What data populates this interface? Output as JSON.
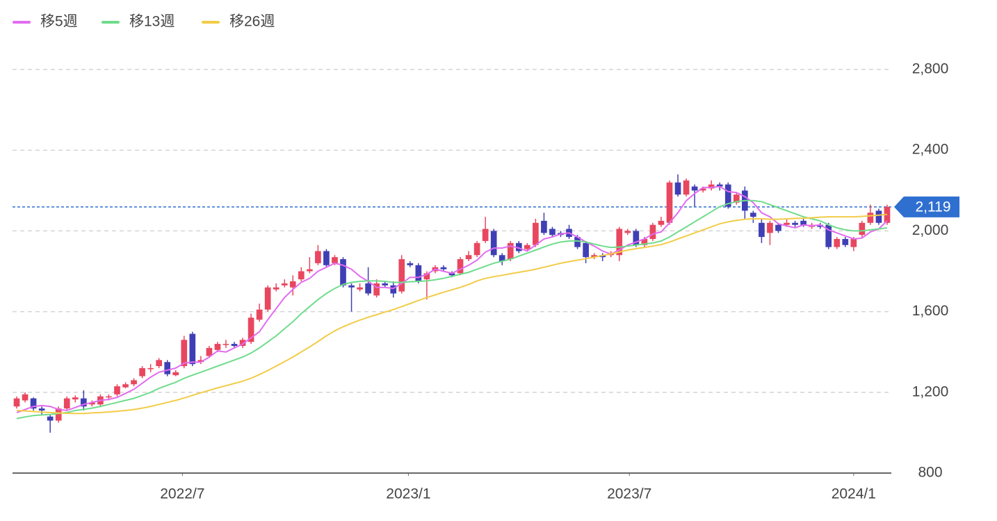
{
  "chart_data": {
    "type": "candlestick",
    "series": [
      {
        "name": "移5週",
        "color": "#e26cf0",
        "values": [
          1100,
          1115,
          1130,
          1135,
          1130,
          1115,
          1110,
          1125,
          1140,
          1150,
          1160,
          1165,
          1175,
          1195,
          1215,
          1245,
          1275,
          1300,
          1310,
          1320,
          1345,
          1350,
          1350,
          1375,
          1405,
          1400,
          1420,
          1440,
          1470,
          1500,
          1560,
          1615,
          1670,
          1710,
          1745,
          1765,
          1800,
          1820,
          1840,
          1830,
          1810,
          1775,
          1750,
          1720,
          1720,
          1715,
          1740,
          1770,
          1770,
          1785,
          1810,
          1800,
          1790,
          1810,
          1830,
          1855,
          1895,
          1915,
          1915,
          1925,
          1915,
          1900,
          1930,
          1960,
          1970,
          1985,
          1990,
          1970,
          1945,
          1925,
          1900,
          1885,
          1905,
          1930,
          1945,
          1960,
          1985,
          1995,
          2040,
          2090,
          2150,
          2185,
          2215,
          2215,
          2220,
          2195,
          2190,
          2170,
          2140,
          2090,
          2070,
          2035,
          2025,
          2015,
          2030,
          2025,
          2030,
          2005,
          1990,
          1975,
          1960,
          1965,
          1995,
          2010,
          2050
        ]
      },
      {
        "name": "移13週",
        "color": "#6fdc8c",
        "values": [
          1070,
          1078,
          1085,
          1088,
          1090,
          1095,
          1100,
          1110,
          1115,
          1122,
          1130,
          1140,
          1150,
          1160,
          1170,
          1185,
          1200,
          1220,
          1235,
          1250,
          1270,
          1285,
          1300,
          1315,
          1330,
          1345,
          1360,
          1375,
          1395,
          1420,
          1450,
          1480,
          1515,
          1550,
          1590,
          1625,
          1660,
          1690,
          1715,
          1735,
          1745,
          1750,
          1752,
          1752,
          1750,
          1745,
          1745,
          1748,
          1750,
          1752,
          1758,
          1765,
          1775,
          1785,
          1795,
          1810,
          1825,
          1840,
          1850,
          1860,
          1875,
          1890,
          1905,
          1920,
          1935,
          1945,
          1950,
          1950,
          1945,
          1935,
          1925,
          1918,
          1920,
          1925,
          1930,
          1935,
          1940,
          1950,
          1970,
          1995,
          2020,
          2045,
          2070,
          2095,
          2120,
          2135,
          2145,
          2150,
          2150,
          2145,
          2130,
          2115,
          2100,
          2085,
          2070,
          2060,
          2050,
          2030,
          2015,
          2005,
          2000,
          2000,
          2005,
          2010,
          2015
        ]
      },
      {
        "name": "移26週",
        "color": "#f2cc48",
        "values": [
          1110,
          1108,
          1105,
          1102,
          1100,
          1098,
          1096,
          1095,
          1095,
          1098,
          1100,
          1103,
          1106,
          1110,
          1115,
          1122,
          1130,
          1140,
          1150,
          1160,
          1172,
          1185,
          1198,
          1210,
          1222,
          1233,
          1244,
          1255,
          1270,
          1288,
          1308,
          1330,
          1352,
          1375,
          1400,
          1425,
          1452,
          1480,
          1505,
          1525,
          1542,
          1558,
          1572,
          1585,
          1598,
          1610,
          1625,
          1640,
          1655,
          1670,
          1683,
          1696,
          1708,
          1720,
          1735,
          1752,
          1765,
          1773,
          1780,
          1788,
          1795,
          1802,
          1810,
          1820,
          1830,
          1840,
          1848,
          1855,
          1862,
          1870,
          1878,
          1886,
          1895,
          1905,
          1912,
          1918,
          1925,
          1932,
          1945,
          1960,
          1975,
          1990,
          2005,
          2020,
          2035,
          2045,
          2052,
          2058,
          2060,
          2060,
          2058,
          2058,
          2060,
          2062,
          2063,
          2065,
          2068,
          2070,
          2070,
          2070,
          2070,
          2072,
          2075,
          2078,
          2082
        ]
      }
    ],
    "candles": {
      "up_color": "#e8475f",
      "down_color": "#3f3fb5",
      "open": [
        1130,
        1160,
        1170,
        1120,
        1080,
        1060,
        1120,
        1165,
        1170,
        1140,
        1140,
        1175,
        1190,
        1225,
        1240,
        1280,
        1315,
        1330,
        1350,
        1285,
        1330,
        1490,
        1350,
        1380,
        1410,
        1435,
        1440,
        1430,
        1450,
        1560,
        1610,
        1710,
        1730,
        1720,
        1760,
        1800,
        1840,
        1900,
        1840,
        1860,
        1730,
        1710,
        1740,
        1680,
        1740,
        1730,
        1700,
        1840,
        1830,
        1760,
        1800,
        1820,
        1790,
        1790,
        1860,
        1880,
        1950,
        2000,
        1880,
        1860,
        1940,
        1910,
        1930,
        2050,
        2010,
        1990,
        2010,
        1970,
        1940,
        1870,
        1880,
        1880,
        1880,
        1990,
        2000,
        1930,
        1960,
        2030,
        2040,
        2240,
        2180,
        2220,
        2200,
        2210,
        2230,
        2230,
        2140,
        2200,
        2090,
        2040,
        1990,
        2030,
        2030,
        2040,
        2050,
        2020,
        2030,
        2030,
        1920,
        1960,
        1920,
        1980,
        2040,
        2100,
        2040
      ],
      "high": [
        1180,
        1200,
        1175,
        1130,
        1090,
        1130,
        1180,
        1185,
        1210,
        1160,
        1190,
        1190,
        1240,
        1250,
        1270,
        1330,
        1340,
        1370,
        1360,
        1310,
        1480,
        1500,
        1380,
        1430,
        1450,
        1460,
        1450,
        1470,
        1590,
        1640,
        1730,
        1740,
        1760,
        1780,
        1820,
        1870,
        1930,
        1910,
        1880,
        1870,
        1740,
        1740,
        1820,
        1760,
        1750,
        1750,
        1880,
        1850,
        1840,
        1800,
        1830,
        1830,
        1800,
        1870,
        1900,
        1950,
        2070,
        2010,
        1890,
        1950,
        1950,
        1940,
        2060,
        2090,
        2020,
        2000,
        2030,
        1980,
        1950,
        1890,
        1890,
        1900,
        2020,
        2010,
        2010,
        1970,
        2040,
        2070,
        2250,
        2280,
        2260,
        2230,
        2220,
        2250,
        2240,
        2240,
        2190,
        2220,
        2100,
        2060,
        2050,
        2040,
        2060,
        2050,
        2060,
        2040,
        2040,
        2040,
        1970,
        1970,
        1970,
        2050,
        2130,
        2110,
        2130
      ],
      "low": [
        1120,
        1150,
        1110,
        1090,
        1000,
        1050,
        1110,
        1150,
        1110,
        1130,
        1130,
        1160,
        1180,
        1220,
        1230,
        1270,
        1300,
        1320,
        1280,
        1280,
        1320,
        1330,
        1340,
        1370,
        1400,
        1420,
        1420,
        1420,
        1440,
        1550,
        1600,
        1700,
        1720,
        1680,
        1750,
        1790,
        1830,
        1820,
        1830,
        1720,
        1600,
        1700,
        1680,
        1670,
        1720,
        1670,
        1690,
        1820,
        1740,
        1660,
        1790,
        1800,
        1770,
        1780,
        1850,
        1870,
        1940,
        1870,
        1830,
        1850,
        1890,
        1900,
        1920,
        1980,
        1970,
        1970,
        1960,
        1910,
        1840,
        1860,
        1850,
        1870,
        1850,
        1980,
        1920,
        1920,
        1950,
        2020,
        2030,
        2170,
        2170,
        2120,
        2190,
        2200,
        2200,
        2110,
        2130,
        2060,
        2040,
        1940,
        1930,
        1990,
        2020,
        2020,
        2020,
        2010,
        2010,
        1910,
        1910,
        1920,
        1900,
        1970,
        2030,
        2030,
        2030
      ],
      "close": [
        1170,
        1190,
        1120,
        1110,
        1060,
        1120,
        1170,
        1175,
        1130,
        1150,
        1180,
        1180,
        1230,
        1240,
        1260,
        1320,
        1320,
        1360,
        1290,
        1300,
        1460,
        1340,
        1360,
        1420,
        1440,
        1440,
        1430,
        1460,
        1570,
        1610,
        1720,
        1720,
        1740,
        1750,
        1800,
        1810,
        1900,
        1830,
        1870,
        1730,
        1720,
        1720,
        1690,
        1740,
        1730,
        1690,
        1860,
        1830,
        1750,
        1790,
        1820,
        1810,
        1780,
        1860,
        1880,
        1940,
        2010,
        1880,
        1850,
        1940,
        1900,
        1930,
        2040,
        1990,
        1980,
        1980,
        1970,
        1920,
        1870,
        1880,
        1870,
        1890,
        2010,
        2000,
        1930,
        1960,
        2030,
        2050,
        2240,
        2180,
        2250,
        2200,
        2210,
        2230,
        2220,
        2120,
        2180,
        2100,
        2070,
        1970,
        2040,
        2000,
        2040,
        2030,
        2030,
        2030,
        2020,
        1920,
        1960,
        1930,
        1960,
        2040,
        2090,
        2040,
        2119
      ]
    },
    "xlim": [
      -0.5,
      104.5
    ],
    "xticks": [
      {
        "value": 19.8,
        "label": "2022/7"
      },
      {
        "value": 46.8,
        "label": "2023/1"
      },
      {
        "value": 73.2,
        "label": "2023/7"
      },
      {
        "value": 100,
        "label": "2024/1"
      }
    ],
    "ylim": [
      800,
      2800
    ],
    "yticks": [
      800,
      {
        "value": 1200,
        "label": "1,200"
      },
      {
        "value": 1600,
        "label": "1,600"
      },
      {
        "value": 2000,
        "label": "2,000"
      },
      {
        "value": 2400,
        "label": "2,400"
      },
      {
        "value": 2800,
        "label": "2,800"
      }
    ],
    "grid": true,
    "last_price": {
      "value": 2119,
      "label": "2,119",
      "color": "#2f6fd0"
    }
  }
}
